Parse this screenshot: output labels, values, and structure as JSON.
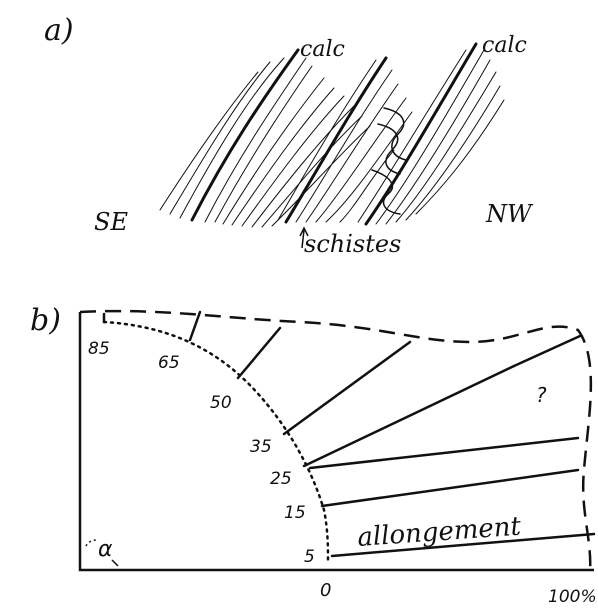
{
  "panel_a": {
    "label": "a)",
    "left_side": "SE",
    "right_side": "NW",
    "calc_labels": [
      "calc",
      "calc"
    ],
    "schist_label": "schistes"
  },
  "panel_b": {
    "label": "b)",
    "angles": [
      "85",
      "65",
      "50",
      "35",
      "25",
      "15",
      "5"
    ],
    "alpha_label": "α",
    "question_mark": "?",
    "curve_label": "allongement",
    "x_tick_zero": "0",
    "x_tick_full": "100%"
  },
  "colors": {
    "ink": "#111111",
    "paper": "#ffffff"
  }
}
